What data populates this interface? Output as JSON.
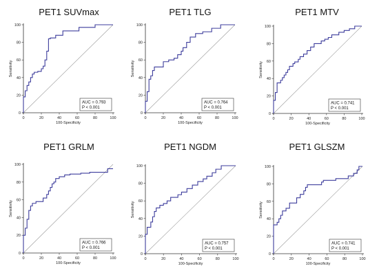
{
  "chart_data": [
    {
      "type": "line",
      "title": "PET1 SUVmax",
      "xlabel": "100-Specificity",
      "ylabel": "Sensitivity",
      "xlim": [
        0,
        100
      ],
      "ylim": [
        0,
        100
      ],
      "xticks": [
        0,
        20,
        40,
        60,
        80,
        100
      ],
      "yticks": [
        0,
        20,
        40,
        60,
        80,
        100
      ],
      "reference_line": true,
      "annotation": [
        "AUC = 0.793",
        "P < 0.001"
      ],
      "series": [
        {
          "x": [
            0,
            0,
            2,
            2,
            4,
            4,
            6,
            6,
            8,
            8,
            10,
            10,
            12,
            12,
            16,
            16,
            20,
            20,
            22,
            22,
            24,
            24,
            26,
            26,
            28,
            28,
            30,
            30,
            36,
            36,
            44,
            44,
            62,
            62,
            80,
            80,
            100
          ],
          "y": [
            0,
            18,
            18,
            25,
            25,
            31,
            31,
            35,
            35,
            40,
            40,
            44,
            44,
            46,
            46,
            47,
            47,
            50,
            50,
            53,
            53,
            60,
            60,
            70,
            70,
            84,
            84,
            85,
            85,
            88,
            88,
            93,
            93,
            97,
            97,
            100,
            100
          ]
        }
      ]
    },
    {
      "type": "line",
      "title": "PET1 TLG",
      "xlabel": "100-Specificity",
      "ylabel": "Sensitivity",
      "xlim": [
        0,
        100
      ],
      "ylim": [
        0,
        100
      ],
      "xticks": [
        0,
        20,
        40,
        60,
        80,
        100
      ],
      "yticks": [
        0,
        20,
        40,
        60,
        80,
        100
      ],
      "reference_line": true,
      "annotation": [
        "AUC = 0.764",
        "P < 0.001"
      ],
      "series": [
        {
          "x": [
            0,
            0,
            2,
            2,
            4,
            4,
            6,
            6,
            8,
            8,
            10,
            10,
            20,
            20,
            26,
            26,
            32,
            32,
            36,
            36,
            40,
            40,
            42,
            42,
            46,
            46,
            50,
            50,
            56,
            56,
            64,
            64,
            74,
            74,
            84,
            84,
            100
          ],
          "y": [
            0,
            13,
            13,
            24,
            24,
            38,
            38,
            42,
            42,
            48,
            48,
            52,
            52,
            58,
            58,
            60,
            60,
            62,
            62,
            66,
            66,
            70,
            70,
            74,
            74,
            80,
            80,
            86,
            86,
            90,
            90,
            92,
            92,
            96,
            96,
            100,
            100
          ]
        }
      ]
    },
    {
      "type": "line",
      "title": "PET1 MTV",
      "xlabel": "100-Specificity",
      "ylabel": "Sensitivity",
      "xlim": [
        0,
        100
      ],
      "ylim": [
        0,
        100
      ],
      "xticks": [
        0,
        20,
        40,
        60,
        80,
        100
      ],
      "yticks": [
        0,
        20,
        40,
        60,
        80,
        100
      ],
      "reference_line": true,
      "annotation": [
        "AUC = 0.741",
        "P < 0.001"
      ],
      "series": [
        {
          "x": [
            0,
            0,
            2,
            2,
            4,
            4,
            8,
            8,
            10,
            10,
            12,
            12,
            14,
            14,
            16,
            16,
            18,
            18,
            22,
            22,
            24,
            24,
            28,
            28,
            30,
            30,
            34,
            34,
            38,
            38,
            42,
            42,
            46,
            46,
            54,
            54,
            58,
            58,
            62,
            62,
            66,
            66,
            74,
            74,
            80,
            80,
            86,
            86,
            92,
            92,
            100
          ],
          "y": [
            0,
            15,
            15,
            24,
            24,
            35,
            35,
            38,
            38,
            41,
            41,
            44,
            44,
            47,
            47,
            50,
            50,
            54,
            54,
            57,
            57,
            59,
            59,
            62,
            62,
            65,
            65,
            68,
            68,
            72,
            72,
            76,
            76,
            80,
            80,
            83,
            83,
            85,
            85,
            87,
            87,
            90,
            90,
            93,
            93,
            95,
            95,
            97,
            97,
            100,
            100
          ]
        }
      ]
    },
    {
      "type": "line",
      "title": "PET1 GRLM",
      "xlabel": "100-Specificity",
      "ylabel": "Sensitivity",
      "xlim": [
        0,
        100
      ],
      "ylim": [
        0,
        100
      ],
      "xticks": [
        0,
        20,
        40,
        60,
        80,
        100
      ],
      "yticks": [
        0,
        20,
        40,
        60,
        80,
        100
      ],
      "reference_line": true,
      "annotation": [
        "AUC = 0.766",
        "P < 0.001"
      ],
      "series": [
        {
          "x": [
            0,
            0,
            2,
            2,
            4,
            4,
            6,
            6,
            8,
            8,
            10,
            10,
            14,
            14,
            22,
            22,
            26,
            26,
            28,
            28,
            30,
            30,
            32,
            32,
            34,
            34,
            36,
            36,
            40,
            40,
            46,
            46,
            52,
            52,
            64,
            64,
            74,
            74,
            94,
            94,
            100
          ],
          "y": [
            0,
            20,
            20,
            28,
            28,
            38,
            38,
            48,
            48,
            53,
            53,
            56,
            56,
            58,
            58,
            62,
            62,
            66,
            66,
            70,
            70,
            74,
            74,
            78,
            78,
            80,
            80,
            84,
            84,
            86,
            86,
            88,
            88,
            89,
            89,
            90,
            90,
            91,
            91,
            95,
            95
          ]
        }
      ]
    },
    {
      "type": "line",
      "title": "PET1 NGDM",
      "xlabel": "100-Specificity",
      "ylabel": "Sensitivity",
      "xlim": [
        0,
        100
      ],
      "ylim": [
        0,
        100
      ],
      "xticks": [
        0,
        20,
        40,
        60,
        80,
        100
      ],
      "yticks": [
        0,
        20,
        40,
        60,
        80,
        100
      ],
      "reference_line": true,
      "annotation": [
        "AUC = 0.757",
        "P < 0.001"
      ],
      "series": [
        {
          "x": [
            0,
            0,
            2,
            2,
            6,
            6,
            8,
            8,
            10,
            10,
            12,
            12,
            16,
            16,
            20,
            20,
            24,
            24,
            28,
            28,
            36,
            36,
            40,
            40,
            46,
            46,
            52,
            52,
            58,
            58,
            64,
            64,
            68,
            68,
            74,
            74,
            78,
            78,
            84,
            84,
            100
          ],
          "y": [
            0,
            22,
            22,
            30,
            30,
            36,
            36,
            42,
            42,
            48,
            48,
            52,
            52,
            55,
            55,
            57,
            57,
            60,
            60,
            64,
            64,
            67,
            67,
            70,
            70,
            74,
            74,
            78,
            78,
            82,
            82,
            85,
            85,
            88,
            88,
            92,
            92,
            96,
            96,
            100,
            100
          ]
        }
      ]
    },
    {
      "type": "line",
      "title": "PET1 GLSZM",
      "xlabel": "100-Specificity",
      "ylabel": "Sensitivity",
      "xlim": [
        0,
        100
      ],
      "ylim": [
        0,
        100
      ],
      "xticks": [
        0,
        20,
        40,
        60,
        80,
        100
      ],
      "yticks": [
        0,
        20,
        40,
        60,
        80,
        100
      ],
      "reference_line": true,
      "annotation": [
        "AUC = 0.741",
        "P < 0.001"
      ],
      "series": [
        {
          "x": [
            0,
            0,
            4,
            4,
            6,
            6,
            8,
            8,
            10,
            10,
            14,
            14,
            18,
            18,
            26,
            26,
            30,
            30,
            34,
            34,
            36,
            36,
            38,
            38,
            54,
            54,
            56,
            56,
            70,
            70,
            84,
            84,
            90,
            90,
            94,
            94,
            96,
            96,
            100
          ],
          "y": [
            0,
            33,
            33,
            36,
            36,
            40,
            40,
            44,
            44,
            49,
            49,
            52,
            52,
            58,
            58,
            64,
            64,
            68,
            68,
            72,
            72,
            76,
            76,
            79,
            79,
            82,
            82,
            84,
            84,
            86,
            86,
            89,
            89,
            92,
            92,
            96,
            96,
            100,
            100
          ]
        }
      ]
    }
  ]
}
